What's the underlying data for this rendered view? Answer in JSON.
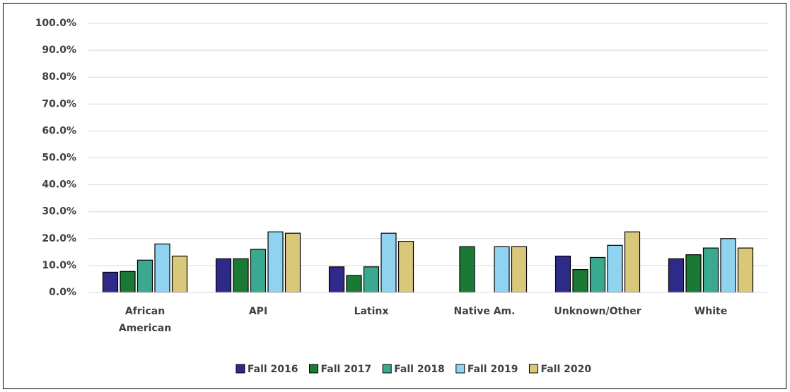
{
  "chart_data": {
    "type": "bar",
    "categories": [
      "African American",
      "API",
      "Latinx",
      "Native Am.",
      "Unknown/Other",
      "White"
    ],
    "series": [
      {
        "name": "Fall 2016",
        "color": "#2e2a8a",
        "values": [
          7.5,
          12.5,
          9.5,
          null,
          13.5,
          12.5
        ]
      },
      {
        "name": "Fall 2017",
        "color": "#1a7a35",
        "values": [
          7.8,
          12.5,
          6.3,
          17,
          8.5,
          14
        ]
      },
      {
        "name": "Fall 2018",
        "color": "#3ba98f",
        "values": [
          12,
          16,
          9.5,
          null,
          13,
          16.5
        ]
      },
      {
        "name": "Fall 2019",
        "color": "#8fd3f0",
        "values": [
          18,
          22.5,
          22,
          17,
          17.5,
          20
        ]
      },
      {
        "name": "Fall 2020",
        "color": "#d9c87a",
        "values": [
          13.5,
          22,
          19,
          17,
          22.5,
          16.5
        ]
      }
    ],
    "ylim": [
      0,
      100
    ],
    "yticks": [
      {
        "value": 0,
        "label": "0.0%"
      },
      {
        "value": 10,
        "label": "10.0%"
      },
      {
        "value": 20,
        "label": "20.0%"
      },
      {
        "value": 30,
        "label": "30.0%"
      },
      {
        "value": 40,
        "label": "40.0%"
      },
      {
        "value": 50,
        "label": "50.0%"
      },
      {
        "value": 60,
        "label": "60.0%"
      },
      {
        "value": 70,
        "label": "70.0%"
      },
      {
        "value": 80,
        "label": "80.0%"
      },
      {
        "value": 90,
        "label": "90.0%"
      },
      {
        "value": 100,
        "label": "100.0%"
      }
    ],
    "grid": true,
    "legend": "bottom"
  }
}
